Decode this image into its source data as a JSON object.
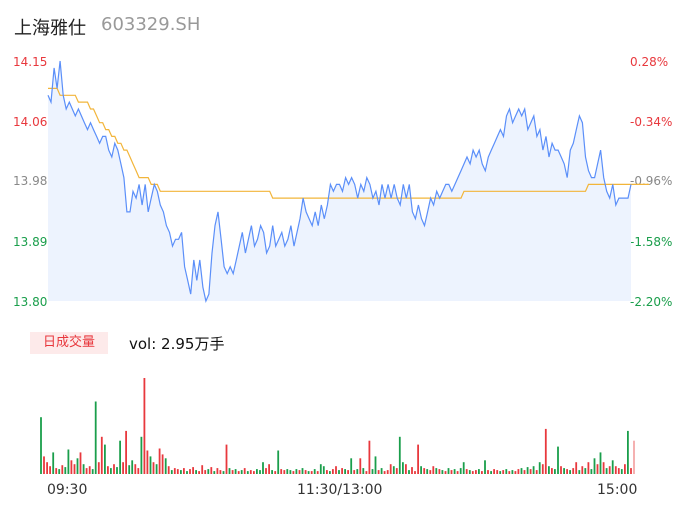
{
  "header": {
    "name": "上海雅仕",
    "code": "603329.SH"
  },
  "colors": {
    "price": "#5b8ff9",
    "avg": "#f2b53a",
    "up": "#e8383d",
    "down": "#1a9e4b",
    "flat": "#888888",
    "area": "#edf3fe"
  },
  "chart_data": {
    "type": "line",
    "title": "",
    "price_axis": {
      "ticks": [
        "14.15",
        "14.06",
        "13.98",
        "13.89",
        "13.80"
      ],
      "ylim": [
        13.8,
        14.15
      ]
    },
    "pct_axis": {
      "ticks": [
        "0.28%",
        "-0.34%",
        "-0.96%",
        "-1.58%",
        "-2.20%"
      ]
    },
    "time_labels": [
      "09:30",
      "11:30/13:00",
      "15:00"
    ],
    "series": [
      {
        "values": [
          14.1,
          14.09,
          14.14,
          14.11,
          14.15,
          14.1,
          14.08,
          14.09,
          14.08,
          14.07,
          14.08,
          14.07,
          14.06,
          14.05,
          14.06,
          14.05,
          14.04,
          14.03,
          14.04,
          14.04,
          14.02,
          14.01,
          14.03,
          14.02,
          14.0,
          13.98,
          13.93,
          13.93,
          13.96,
          13.95,
          13.97,
          13.94,
          13.97,
          13.93,
          13.95,
          13.97,
          13.96,
          13.94,
          13.93,
          13.91,
          13.9,
          13.88,
          13.89,
          13.89,
          13.9,
          13.85,
          13.83,
          13.81,
          13.86,
          13.83,
          13.86,
          13.82,
          13.8,
          13.81,
          13.87,
          13.91,
          13.93,
          13.89,
          13.85,
          13.84,
          13.85,
          13.84,
          13.86,
          13.88,
          13.9,
          13.87,
          13.89,
          13.91,
          13.88,
          13.89,
          13.91,
          13.9,
          13.87,
          13.88,
          13.91,
          13.88,
          13.89,
          13.9,
          13.88,
          13.89,
          13.91,
          13.88,
          13.9,
          13.92,
          13.95,
          13.93,
          13.92,
          13.91,
          13.93,
          13.91,
          13.94,
          13.92,
          13.94,
          13.97,
          13.96,
          13.97,
          13.97,
          13.96,
          13.98,
          13.97,
          13.98,
          13.97,
          13.95,
          13.97,
          13.96,
          13.98,
          13.97,
          13.95,
          13.96,
          13.94,
          13.97,
          13.95,
          13.97,
          13.95,
          13.97,
          13.95,
          13.94,
          13.97,
          13.95,
          13.97,
          13.93,
          13.92,
          13.94,
          13.92,
          13.91,
          13.93,
          13.95,
          13.94,
          13.96,
          13.95,
          13.96,
          13.97,
          13.97,
          13.96,
          13.97,
          13.98,
          13.99,
          14.0,
          14.01,
          14.0,
          14.02,
          14.01,
          14.02,
          14.0,
          13.99,
          14.01,
          14.02,
          14.03,
          14.04,
          14.05,
          14.04,
          14.07,
          14.08,
          14.06,
          14.07,
          14.08,
          14.07,
          14.08,
          14.05,
          14.06,
          14.07,
          14.04,
          14.05,
          14.02,
          14.04,
          14.01,
          14.03,
          14.02,
          14.02,
          14.01,
          14.0,
          13.98,
          14.02,
          14.03,
          14.05,
          14.07,
          14.06,
          14.01,
          13.99,
          13.98,
          13.98,
          14.0,
          14.02,
          13.98,
          13.96,
          13.95,
          13.97,
          13.94,
          13.95,
          13.95,
          13.95,
          13.95,
          13.97
        ]
      },
      {
        "values": [
          14.11,
          14.11,
          14.11,
          14.11,
          14.1,
          14.1,
          14.1,
          14.1,
          14.1,
          14.1,
          14.09,
          14.09,
          14.09,
          14.09,
          14.08,
          14.08,
          14.07,
          14.06,
          14.06,
          14.05,
          14.05,
          14.04,
          14.04,
          14.03,
          14.03,
          14.02,
          14.02,
          14.01,
          14.0,
          13.99,
          13.98,
          13.98,
          13.98,
          13.98,
          13.97,
          13.97,
          13.97,
          13.96,
          13.96,
          13.96,
          13.96,
          13.96,
          13.96,
          13.96,
          13.96,
          13.96,
          13.96,
          13.96,
          13.96,
          13.96,
          13.96,
          13.96,
          13.96,
          13.96,
          13.96,
          13.96,
          13.96,
          13.96,
          13.96,
          13.96,
          13.96,
          13.96,
          13.96,
          13.96,
          13.96,
          13.96,
          13.96,
          13.96,
          13.96,
          13.96,
          13.96,
          13.96,
          13.96,
          13.96,
          13.95,
          13.95,
          13.95,
          13.95,
          13.95,
          13.95,
          13.95,
          13.95,
          13.95,
          13.95,
          13.95,
          13.95,
          13.95,
          13.95,
          13.95,
          13.95,
          13.95,
          13.95,
          13.95,
          13.95,
          13.95,
          13.95,
          13.95,
          13.95,
          13.95,
          13.95,
          13.95,
          13.95,
          13.95,
          13.95,
          13.95,
          13.95,
          13.95,
          13.95,
          13.95,
          13.95,
          13.95,
          13.95,
          13.95,
          13.95,
          13.95,
          13.95,
          13.95,
          13.95,
          13.95,
          13.95,
          13.95,
          13.95,
          13.95,
          13.95,
          13.95,
          13.95,
          13.95,
          13.95,
          13.95,
          13.95,
          13.95,
          13.95,
          13.95,
          13.95,
          13.95,
          13.95,
          13.95,
          13.96,
          13.96,
          13.96,
          13.96,
          13.96,
          13.96,
          13.96,
          13.96,
          13.96,
          13.96,
          13.96,
          13.96,
          13.96,
          13.96,
          13.96,
          13.96,
          13.96,
          13.96,
          13.96,
          13.96,
          13.96,
          13.96,
          13.96,
          13.96,
          13.96,
          13.96,
          13.96,
          13.96,
          13.96,
          13.96,
          13.96,
          13.96,
          13.96,
          13.96,
          13.96,
          13.96,
          13.96,
          13.96,
          13.96,
          13.96,
          13.96,
          13.97,
          13.97,
          13.97,
          13.97,
          13.97,
          13.97,
          13.97,
          13.97,
          13.97,
          13.97,
          13.97,
          13.97,
          13.97,
          13.97,
          13.97,
          13.97,
          13.97,
          13.97,
          13.97,
          13.97,
          13.97
        ]
      }
    ]
  },
  "volume": {
    "label": "日成交量",
    "summary": "vol: 2.95万手",
    "bars": [
      {
        "v": 58,
        "c": "g"
      },
      {
        "v": 18,
        "c": "r"
      },
      {
        "v": 12,
        "c": "r"
      },
      {
        "v": 8,
        "c": "r"
      },
      {
        "v": 22,
        "c": "g"
      },
      {
        "v": 6,
        "c": "r"
      },
      {
        "v": 5,
        "c": "g"
      },
      {
        "v": 9,
        "c": "r"
      },
      {
        "v": 7,
        "c": "g"
      },
      {
        "v": 25,
        "c": "g"
      },
      {
        "v": 14,
        "c": "r"
      },
      {
        "v": 10,
        "c": "r"
      },
      {
        "v": 16,
        "c": "g"
      },
      {
        "v": 22,
        "c": "r"
      },
      {
        "v": 10,
        "c": "g"
      },
      {
        "v": 6,
        "c": "r"
      },
      {
        "v": 8,
        "c": "r"
      },
      {
        "v": 5,
        "c": "g"
      },
      {
        "v": 74,
        "c": "g"
      },
      {
        "v": 12,
        "c": "r"
      },
      {
        "v": 38,
        "c": "r"
      },
      {
        "v": 30,
        "c": "g"
      },
      {
        "v": 8,
        "c": "r"
      },
      {
        "v": 6,
        "c": "g"
      },
      {
        "v": 10,
        "c": "r"
      },
      {
        "v": 7,
        "c": "g"
      },
      {
        "v": 34,
        "c": "g"
      },
      {
        "v": 12,
        "c": "r"
      },
      {
        "v": 44,
        "c": "r"
      },
      {
        "v": 9,
        "c": "g"
      },
      {
        "v": 14,
        "c": "g"
      },
      {
        "v": 10,
        "c": "r"
      },
      {
        "v": 6,
        "c": "r"
      },
      {
        "v": 38,
        "c": "g"
      },
      {
        "v": 98,
        "c": "r"
      },
      {
        "v": 24,
        "c": "r"
      },
      {
        "v": 18,
        "c": "g"
      },
      {
        "v": 12,
        "c": "r"
      },
      {
        "v": 10,
        "c": "g"
      },
      {
        "v": 26,
        "c": "r"
      },
      {
        "v": 20,
        "c": "r"
      },
      {
        "v": 16,
        "c": "g"
      },
      {
        "v": 8,
        "c": "r"
      },
      {
        "v": 4,
        "c": "g"
      },
      {
        "v": 6,
        "c": "r"
      },
      {
        "v": 5,
        "c": "r"
      },
      {
        "v": 4,
        "c": "g"
      },
      {
        "v": 6,
        "c": "r"
      },
      {
        "v": 3,
        "c": "g"
      },
      {
        "v": 5,
        "c": "r"
      },
      {
        "v": 7,
        "c": "r"
      },
      {
        "v": 4,
        "c": "g"
      },
      {
        "v": 3,
        "c": "r"
      },
      {
        "v": 9,
        "c": "r"
      },
      {
        "v": 4,
        "c": "r"
      },
      {
        "v": 5,
        "c": "g"
      },
      {
        "v": 7,
        "c": "r"
      },
      {
        "v": 3,
        "c": "g"
      },
      {
        "v": 6,
        "c": "r"
      },
      {
        "v": 4,
        "c": "r"
      },
      {
        "v": 3,
        "c": "g"
      },
      {
        "v": 30,
        "c": "r"
      },
      {
        "v": 6,
        "c": "g"
      },
      {
        "v": 4,
        "c": "r"
      },
      {
        "v": 5,
        "c": "g"
      },
      {
        "v": 3,
        "c": "r"
      },
      {
        "v": 4,
        "c": "g"
      },
      {
        "v": 6,
        "c": "r"
      },
      {
        "v": 3,
        "c": "g"
      },
      {
        "v": 4,
        "c": "r"
      },
      {
        "v": 3,
        "c": "r"
      },
      {
        "v": 5,
        "c": "g"
      },
      {
        "v": 4,
        "c": "g"
      },
      {
        "v": 12,
        "c": "g"
      },
      {
        "v": 6,
        "c": "r"
      },
      {
        "v": 10,
        "c": "r"
      },
      {
        "v": 4,
        "c": "g"
      },
      {
        "v": 3,
        "c": "r"
      },
      {
        "v": 24,
        "c": "g"
      },
      {
        "v": 5,
        "c": "r"
      },
      {
        "v": 4,
        "c": "r"
      },
      {
        "v": 5,
        "c": "g"
      },
      {
        "v": 4,
        "c": "g"
      },
      {
        "v": 3,
        "c": "r"
      },
      {
        "v": 5,
        "c": "g"
      },
      {
        "v": 4,
        "c": "r"
      },
      {
        "v": 6,
        "c": "g"
      },
      {
        "v": 4,
        "c": "r"
      },
      {
        "v": 3,
        "c": "g"
      },
      {
        "v": 3,
        "c": "r"
      },
      {
        "v": 5,
        "c": "g"
      },
      {
        "v": 3,
        "c": "r"
      },
      {
        "v": 10,
        "c": "g"
      },
      {
        "v": 8,
        "c": "g"
      },
      {
        "v": 4,
        "c": "r"
      },
      {
        "v": 3,
        "c": "g"
      },
      {
        "v": 5,
        "c": "r"
      },
      {
        "v": 8,
        "c": "r"
      },
      {
        "v": 4,
        "c": "g"
      },
      {
        "v": 6,
        "c": "r"
      },
      {
        "v": 5,
        "c": "g"
      },
      {
        "v": 4,
        "c": "r"
      },
      {
        "v": 16,
        "c": "g"
      },
      {
        "v": 4,
        "c": "r"
      },
      {
        "v": 5,
        "c": "g"
      },
      {
        "v": 16,
        "c": "r"
      },
      {
        "v": 6,
        "c": "g"
      },
      {
        "v": 3,
        "c": "r"
      },
      {
        "v": 34,
        "c": "r"
      },
      {
        "v": 5,
        "c": "g"
      },
      {
        "v": 18,
        "c": "g"
      },
      {
        "v": 4,
        "c": "r"
      },
      {
        "v": 6,
        "c": "g"
      },
      {
        "v": 3,
        "c": "r"
      },
      {
        "v": 4,
        "c": "r"
      },
      {
        "v": 10,
        "c": "r"
      },
      {
        "v": 8,
        "c": "g"
      },
      {
        "v": 6,
        "c": "r"
      },
      {
        "v": 38,
        "c": "g"
      },
      {
        "v": 12,
        "c": "g"
      },
      {
        "v": 10,
        "c": "r"
      },
      {
        "v": 4,
        "c": "g"
      },
      {
        "v": 7,
        "c": "r"
      },
      {
        "v": 3,
        "c": "r"
      },
      {
        "v": 30,
        "c": "r"
      },
      {
        "v": 8,
        "c": "g"
      },
      {
        "v": 6,
        "c": "r"
      },
      {
        "v": 5,
        "c": "g"
      },
      {
        "v": 4,
        "c": "r"
      },
      {
        "v": 8,
        "c": "r"
      },
      {
        "v": 6,
        "c": "g"
      },
      {
        "v": 5,
        "c": "r"
      },
      {
        "v": 4,
        "c": "g"
      },
      {
        "v": 3,
        "c": "r"
      },
      {
        "v": 6,
        "c": "g"
      },
      {
        "v": 4,
        "c": "r"
      },
      {
        "v": 5,
        "c": "g"
      },
      {
        "v": 3,
        "c": "r"
      },
      {
        "v": 6,
        "c": "g"
      },
      {
        "v": 12,
        "c": "g"
      },
      {
        "v": 5,
        "c": "r"
      },
      {
        "v": 4,
        "c": "g"
      },
      {
        "v": 3,
        "c": "r"
      },
      {
        "v": 4,
        "c": "r"
      },
      {
        "v": 5,
        "c": "g"
      },
      {
        "v": 3,
        "c": "r"
      },
      {
        "v": 14,
        "c": "g"
      },
      {
        "v": 4,
        "c": "r"
      },
      {
        "v": 3,
        "c": "g"
      },
      {
        "v": 5,
        "c": "r"
      },
      {
        "v": 4,
        "c": "r"
      },
      {
        "v": 3,
        "c": "g"
      },
      {
        "v": 4,
        "c": "r"
      },
      {
        "v": 5,
        "c": "g"
      },
      {
        "v": 3,
        "c": "r"
      },
      {
        "v": 4,
        "c": "g"
      },
      {
        "v": 3,
        "c": "r"
      },
      {
        "v": 5,
        "c": "r"
      },
      {
        "v": 6,
        "c": "g"
      },
      {
        "v": 4,
        "c": "r"
      },
      {
        "v": 7,
        "c": "g"
      },
      {
        "v": 5,
        "c": "r"
      },
      {
        "v": 8,
        "c": "g"
      },
      {
        "v": 4,
        "c": "r"
      },
      {
        "v": 12,
        "c": "g"
      },
      {
        "v": 10,
        "c": "r"
      },
      {
        "v": 46,
        "c": "r"
      },
      {
        "v": 8,
        "c": "g"
      },
      {
        "v": 6,
        "c": "r"
      },
      {
        "v": 5,
        "c": "g"
      },
      {
        "v": 28,
        "c": "g"
      },
      {
        "v": 8,
        "c": "r"
      },
      {
        "v": 6,
        "c": "g"
      },
      {
        "v": 5,
        "c": "r"
      },
      {
        "v": 4,
        "c": "g"
      },
      {
        "v": 6,
        "c": "r"
      },
      {
        "v": 12,
        "c": "r"
      },
      {
        "v": 4,
        "c": "g"
      },
      {
        "v": 8,
        "c": "r"
      },
      {
        "v": 6,
        "c": "g"
      },
      {
        "v": 12,
        "c": "r"
      },
      {
        "v": 5,
        "c": "g"
      },
      {
        "v": 16,
        "c": "g"
      },
      {
        "v": 10,
        "c": "r"
      },
      {
        "v": 22,
        "c": "g"
      },
      {
        "v": 12,
        "c": "r"
      },
      {
        "v": 6,
        "c": "g"
      },
      {
        "v": 8,
        "c": "r"
      },
      {
        "v": 14,
        "c": "g"
      },
      {
        "v": 8,
        "c": "r"
      },
      {
        "v": 6,
        "c": "r"
      },
      {
        "v": 5,
        "c": "g"
      },
      {
        "v": 10,
        "c": "r"
      },
      {
        "v": 44,
        "c": "g"
      },
      {
        "v": 6,
        "c": "r"
      },
      {
        "v": 34,
        "c": "p"
      }
    ]
  }
}
